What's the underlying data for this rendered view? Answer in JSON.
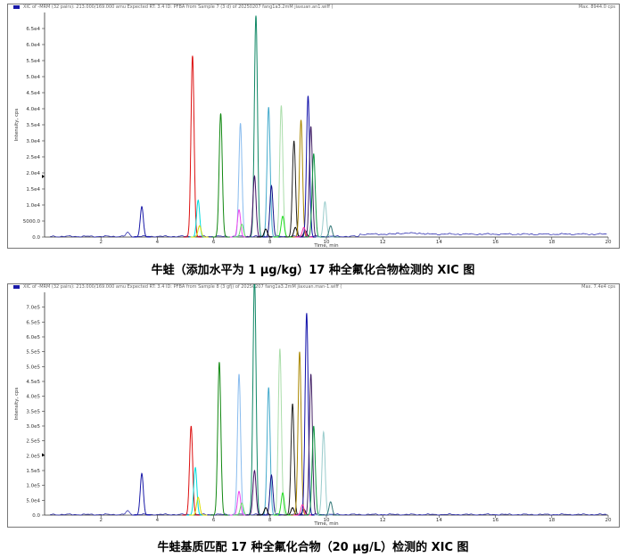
{
  "captions": [
    "牛蛙（添加水平为 1 μg/kg）17 种全氟化合物检测的 XIC 图",
    "牛蛙基质匹配 17 种全氟化合物（20 μg/L）检测的 XIC 图"
  ],
  "panels": [
    {
      "header_left": "XIC of -MRM (32 pairs): 213.000/169.000 amu Expected RT: 3.4 ID: PFBA from Sample 7 (3 d) of 20250207 fang1a3.2mM jiaxuan.an1.wiff (",
      "header_right": "Max. 8944.0 cps",
      "ylabel": "Intensity, cps",
      "xlabel": "Time, min"
    },
    {
      "header_left": "XIC of -MRM (32 pairs): 213.000/169.000 amu Expected RT: 3.4 ID: PFBA from Sample 8 (3 gfj) of 20250207 fang1a3.2mM jiaxuan.man-1.wiff (",
      "header_right": "Max. 7.4e4 cps",
      "ylabel": "Intensity, cps",
      "xlabel": "Time, min"
    }
  ],
  "chart_data": [
    {
      "type": "line",
      "title": "牛蛙（添加水平为 1 μg/kg）17 种全氟化合物检测的 XIC 图",
      "xlabel": "Time, min",
      "ylabel": "Intensity, cps",
      "xlim": [
        0,
        20
      ],
      "ylim": [
        0,
        14000
      ],
      "x_ticks": [
        2,
        4,
        6,
        8,
        10,
        12,
        14,
        16,
        18,
        20
      ],
      "y_ticks": [
        {
          "v": 0,
          "label": "0.0"
        },
        {
          "v": 1000,
          "label": "5000.0"
        },
        {
          "v": 2000,
          "label": "1.0e4"
        },
        {
          "v": 3000,
          "label": "1.5e4"
        },
        {
          "v": 4000,
          "label": "2.0e4"
        },
        {
          "v": 5000,
          "label": "2.5e4"
        },
        {
          "v": 6000,
          "label": "3.0e4"
        },
        {
          "v": 7000,
          "label": "3.5e4"
        },
        {
          "v": 8000,
          "label": "4.0e4"
        },
        {
          "v": 9000,
          "label": "4.5e4"
        },
        {
          "v": 10000,
          "label": "5.0e4"
        },
        {
          "v": 11000,
          "label": "5.5e4"
        },
        {
          "v": 12000,
          "label": "6.0e4"
        },
        {
          "v": 13000,
          "label": "6.5e4"
        }
      ],
      "series": [
        {
          "color": "#1a1aa8",
          "peaks": [
            [
              3.45,
              1900
            ]
          ]
        },
        {
          "color": "#dd1111",
          "peaks": [
            [
              5.25,
              11300
            ]
          ]
        },
        {
          "color": "#00dddd",
          "peaks": [
            [
              5.45,
              2300
            ]
          ]
        },
        {
          "color": "#dddd00",
          "peaks": [
            [
              5.5,
              700
            ]
          ]
        },
        {
          "color": "#118811",
          "peaks": [
            [
              6.25,
              7700
            ]
          ]
        },
        {
          "color": "#88bbee",
          "peaks": [
            [
              6.95,
              7100
            ]
          ]
        },
        {
          "color": "#ee44ee",
          "peaks": [
            [
              6.9,
              1700
            ]
          ]
        },
        {
          "color": "#66dd66",
          "peaks": [
            [
              7.0,
              800
            ]
          ]
        },
        {
          "color": "#118866",
          "peaks": [
            [
              7.5,
              13800
            ]
          ]
        },
        {
          "color": "#441166",
          "peaks": [
            [
              7.45,
              3800
            ]
          ]
        },
        {
          "color": "#44aacc",
          "peaks": [
            [
              7.95,
              8100
            ]
          ]
        },
        {
          "color": "#111188",
          "peaks": [
            [
              8.05,
              3200
            ]
          ]
        },
        {
          "color": "#000000",
          "peaks": [
            [
              7.85,
              500
            ],
            [
              8.9,
              600
            ],
            [
              9.25,
              400
            ]
          ]
        },
        {
          "color": "#aaddaa",
          "peaks": [
            [
              8.4,
              8200
            ]
          ]
        },
        {
          "color": "#22dd22",
          "peaks": [
            [
              8.45,
              1300
            ]
          ]
        },
        {
          "color": "#222222",
          "peaks": [
            [
              8.85,
              6000
            ]
          ]
        },
        {
          "color": "#aa8800",
          "peaks": [
            [
              9.1,
              7300
            ]
          ]
        },
        {
          "color": "#1111aa",
          "peaks": [
            [
              9.35,
              8800
            ]
          ]
        },
        {
          "color": "#442266",
          "peaks": [
            [
              9.45,
              6900
            ]
          ]
        },
        {
          "color": "#ff33aa",
          "peaks": [
            [
              9.2,
              600
            ]
          ]
        },
        {
          "color": "#119944",
          "peaks": [
            [
              9.55,
              5200
            ]
          ]
        },
        {
          "color": "#99cccc",
          "peaks": [
            [
              9.95,
              2200
            ]
          ]
        },
        {
          "color": "#337777",
          "peaks": [
            [
              10.15,
              700
            ]
          ]
        }
      ]
    },
    {
      "type": "line",
      "title": "牛蛙基质匹配 17 种全氟化合物（20 μg/L）检测的 XIC 图",
      "xlabel": "Time, min",
      "ylabel": "Intensity, cps",
      "xlim": [
        0,
        20
      ],
      "ylim": [
        0,
        15000
      ],
      "x_ticks": [
        2,
        4,
        6,
        8,
        10,
        12,
        14,
        16,
        18,
        20
      ],
      "y_ticks": [
        {
          "v": 0,
          "label": "0.0"
        },
        {
          "v": 1000,
          "label": "5.0e4"
        },
        {
          "v": 2000,
          "label": "1.0e5"
        },
        {
          "v": 3000,
          "label": "1.5e5"
        },
        {
          "v": 4000,
          "label": "2.0e5"
        },
        {
          "v": 5000,
          "label": "2.5e5"
        },
        {
          "v": 6000,
          "label": "3.0e5"
        },
        {
          "v": 7000,
          "label": "3.5e5"
        },
        {
          "v": 8000,
          "label": "4.0e5"
        },
        {
          "v": 9000,
          "label": "4.5e5"
        },
        {
          "v": 10000,
          "label": "5.0e5"
        },
        {
          "v": 11000,
          "label": "5.5e5"
        },
        {
          "v": 12000,
          "label": "6.0e5"
        },
        {
          "v": 13000,
          "label": "6.5e5"
        },
        {
          "v": 14000,
          "label": "7.0e5"
        }
      ],
      "series": [
        {
          "color": "#1a1aa8",
          "peaks": [
            [
              3.45,
              2800
            ]
          ]
        },
        {
          "color": "#dd1111",
          "peaks": [
            [
              5.2,
              6000
            ]
          ]
        },
        {
          "color": "#00dddd",
          "peaks": [
            [
              5.35,
              3200
            ]
          ]
        },
        {
          "color": "#dddd00",
          "peaks": [
            [
              5.45,
              1200
            ]
          ]
        },
        {
          "color": "#118811",
          "peaks": [
            [
              6.2,
              10300
            ]
          ]
        },
        {
          "color": "#88bbee",
          "peaks": [
            [
              6.9,
              9500
            ]
          ]
        },
        {
          "color": "#ee44ee",
          "peaks": [
            [
              6.9,
              1600
            ]
          ]
        },
        {
          "color": "#66dd66",
          "peaks": [
            [
              7.0,
              800
            ]
          ]
        },
        {
          "color": "#118866",
          "peaks": [
            [
              7.45,
              16000
            ]
          ]
        },
        {
          "color": "#441166",
          "peaks": [
            [
              7.45,
              3000
            ]
          ]
        },
        {
          "color": "#44aacc",
          "peaks": [
            [
              7.95,
              8600
            ]
          ]
        },
        {
          "color": "#111188",
          "peaks": [
            [
              8.05,
              2700
            ]
          ]
        },
        {
          "color": "#000000",
          "peaks": [
            [
              7.85,
              500
            ],
            [
              8.8,
              500
            ],
            [
              9.2,
              400
            ]
          ]
        },
        {
          "color": "#aaddaa",
          "peaks": [
            [
              8.35,
              11200
            ]
          ]
        },
        {
          "color": "#22dd22",
          "peaks": [
            [
              8.45,
              1500
            ]
          ]
        },
        {
          "color": "#222222",
          "peaks": [
            [
              8.8,
              7500
            ]
          ]
        },
        {
          "color": "#aa8800",
          "peaks": [
            [
              9.05,
              11000
            ]
          ]
        },
        {
          "color": "#1111aa",
          "peaks": [
            [
              9.3,
              13600
            ]
          ]
        },
        {
          "color": "#442266",
          "peaks": [
            [
              9.45,
              9500
            ]
          ]
        },
        {
          "color": "#ff33aa",
          "peaks": [
            [
              9.15,
              700
            ]
          ]
        },
        {
          "color": "#119944",
          "peaks": [
            [
              9.55,
              6000
            ]
          ]
        },
        {
          "color": "#99cccc",
          "peaks": [
            [
              9.9,
              5600
            ]
          ]
        },
        {
          "color": "#337777",
          "peaks": [
            [
              10.15,
              900
            ]
          ]
        }
      ]
    }
  ]
}
